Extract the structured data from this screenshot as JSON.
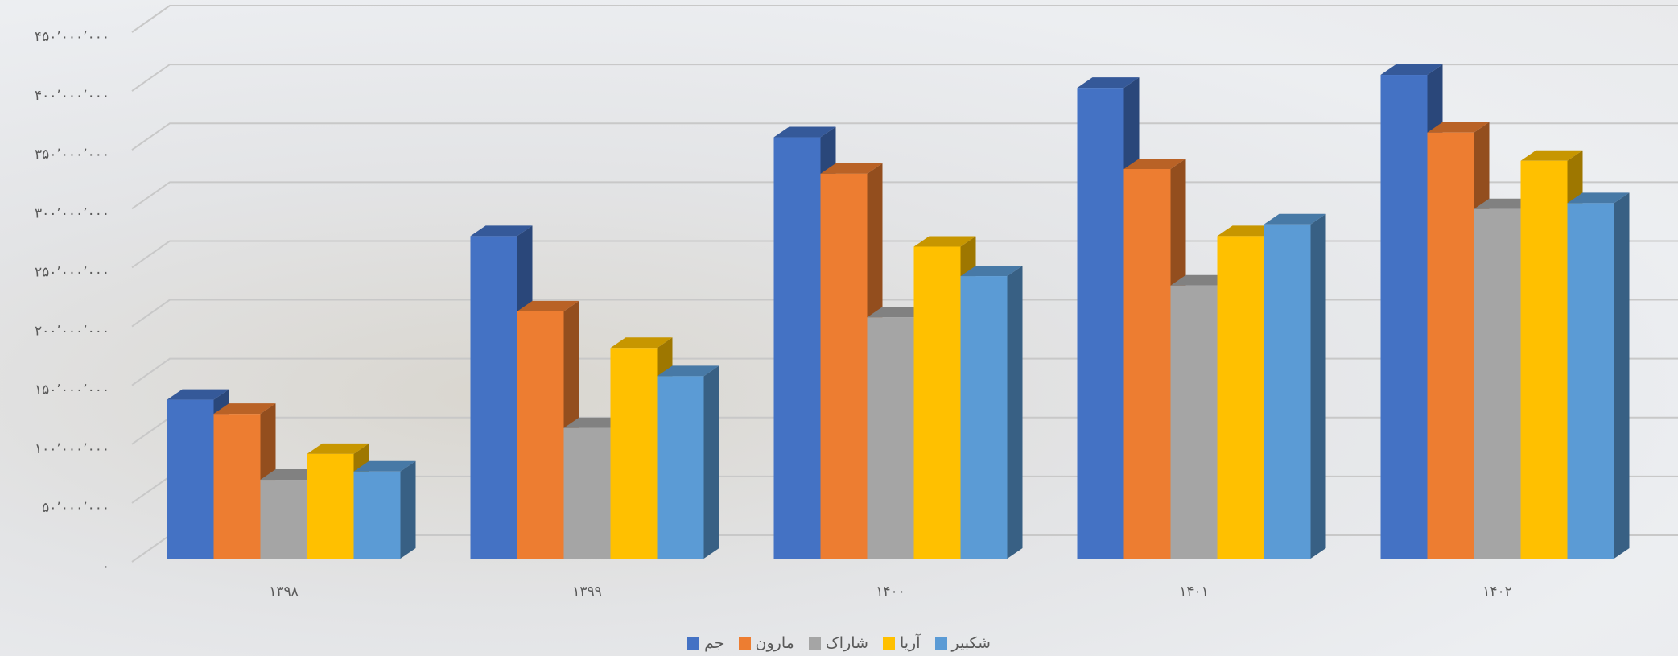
{
  "chart_data": {
    "type": "bar3d",
    "categories": [
      "۱۳۹۸",
      "۱۳۹۹",
      "۱۴۰۰",
      "۱۴۰۱",
      "۱۴۰۲"
    ],
    "series": [
      {
        "name": "جم",
        "color": "#4472c4",
        "values": [
          135000000,
          274000000,
          358000000,
          400000000,
          411000000
        ]
      },
      {
        "name": "مارون",
        "color": "#ed7d31",
        "values": [
          123000000,
          210000000,
          327000000,
          331000000,
          362000000
        ]
      },
      {
        "name": "شاراک",
        "color": "#a5a5a5",
        "values": [
          67000000,
          111000000,
          205000000,
          232000000,
          297000000
        ]
      },
      {
        "name": "آریا",
        "color": "#ffc000",
        "values": [
          89000000,
          179000000,
          265000000,
          274000000,
          338000000
        ]
      },
      {
        "name": "شکبیر",
        "color": "#5b9bd5",
        "values": [
          74000000,
          155000000,
          240000000,
          284000000,
          302000000
        ]
      }
    ],
    "ylim": [
      0,
      450000000
    ],
    "yticks": [
      {
        "value": 0,
        "label": "۰"
      },
      {
        "value": 50000000,
        "label": "۵۰٬۰۰۰٬۰۰۰"
      },
      {
        "value": 100000000,
        "label": "۱۰۰٬۰۰۰٬۰۰۰"
      },
      {
        "value": 150000000,
        "label": "۱۵۰٬۰۰۰٬۰۰۰"
      },
      {
        "value": 200000000,
        "label": "۲۰۰٬۰۰۰٬۰۰۰"
      },
      {
        "value": 250000000,
        "label": "۲۵۰٬۰۰۰٬۰۰۰"
      },
      {
        "value": 300000000,
        "label": "۳۰۰٬۰۰۰٬۰۰۰"
      },
      {
        "value": 350000000,
        "label": "۳۵۰٬۰۰۰٬۰۰۰"
      },
      {
        "value": 400000000,
        "label": "۴۰۰٬۰۰۰٬۰۰۰"
      },
      {
        "value": 450000000,
        "label": "۴۵۰٬۰۰۰٬۰۰۰"
      }
    ],
    "grid": true
  }
}
